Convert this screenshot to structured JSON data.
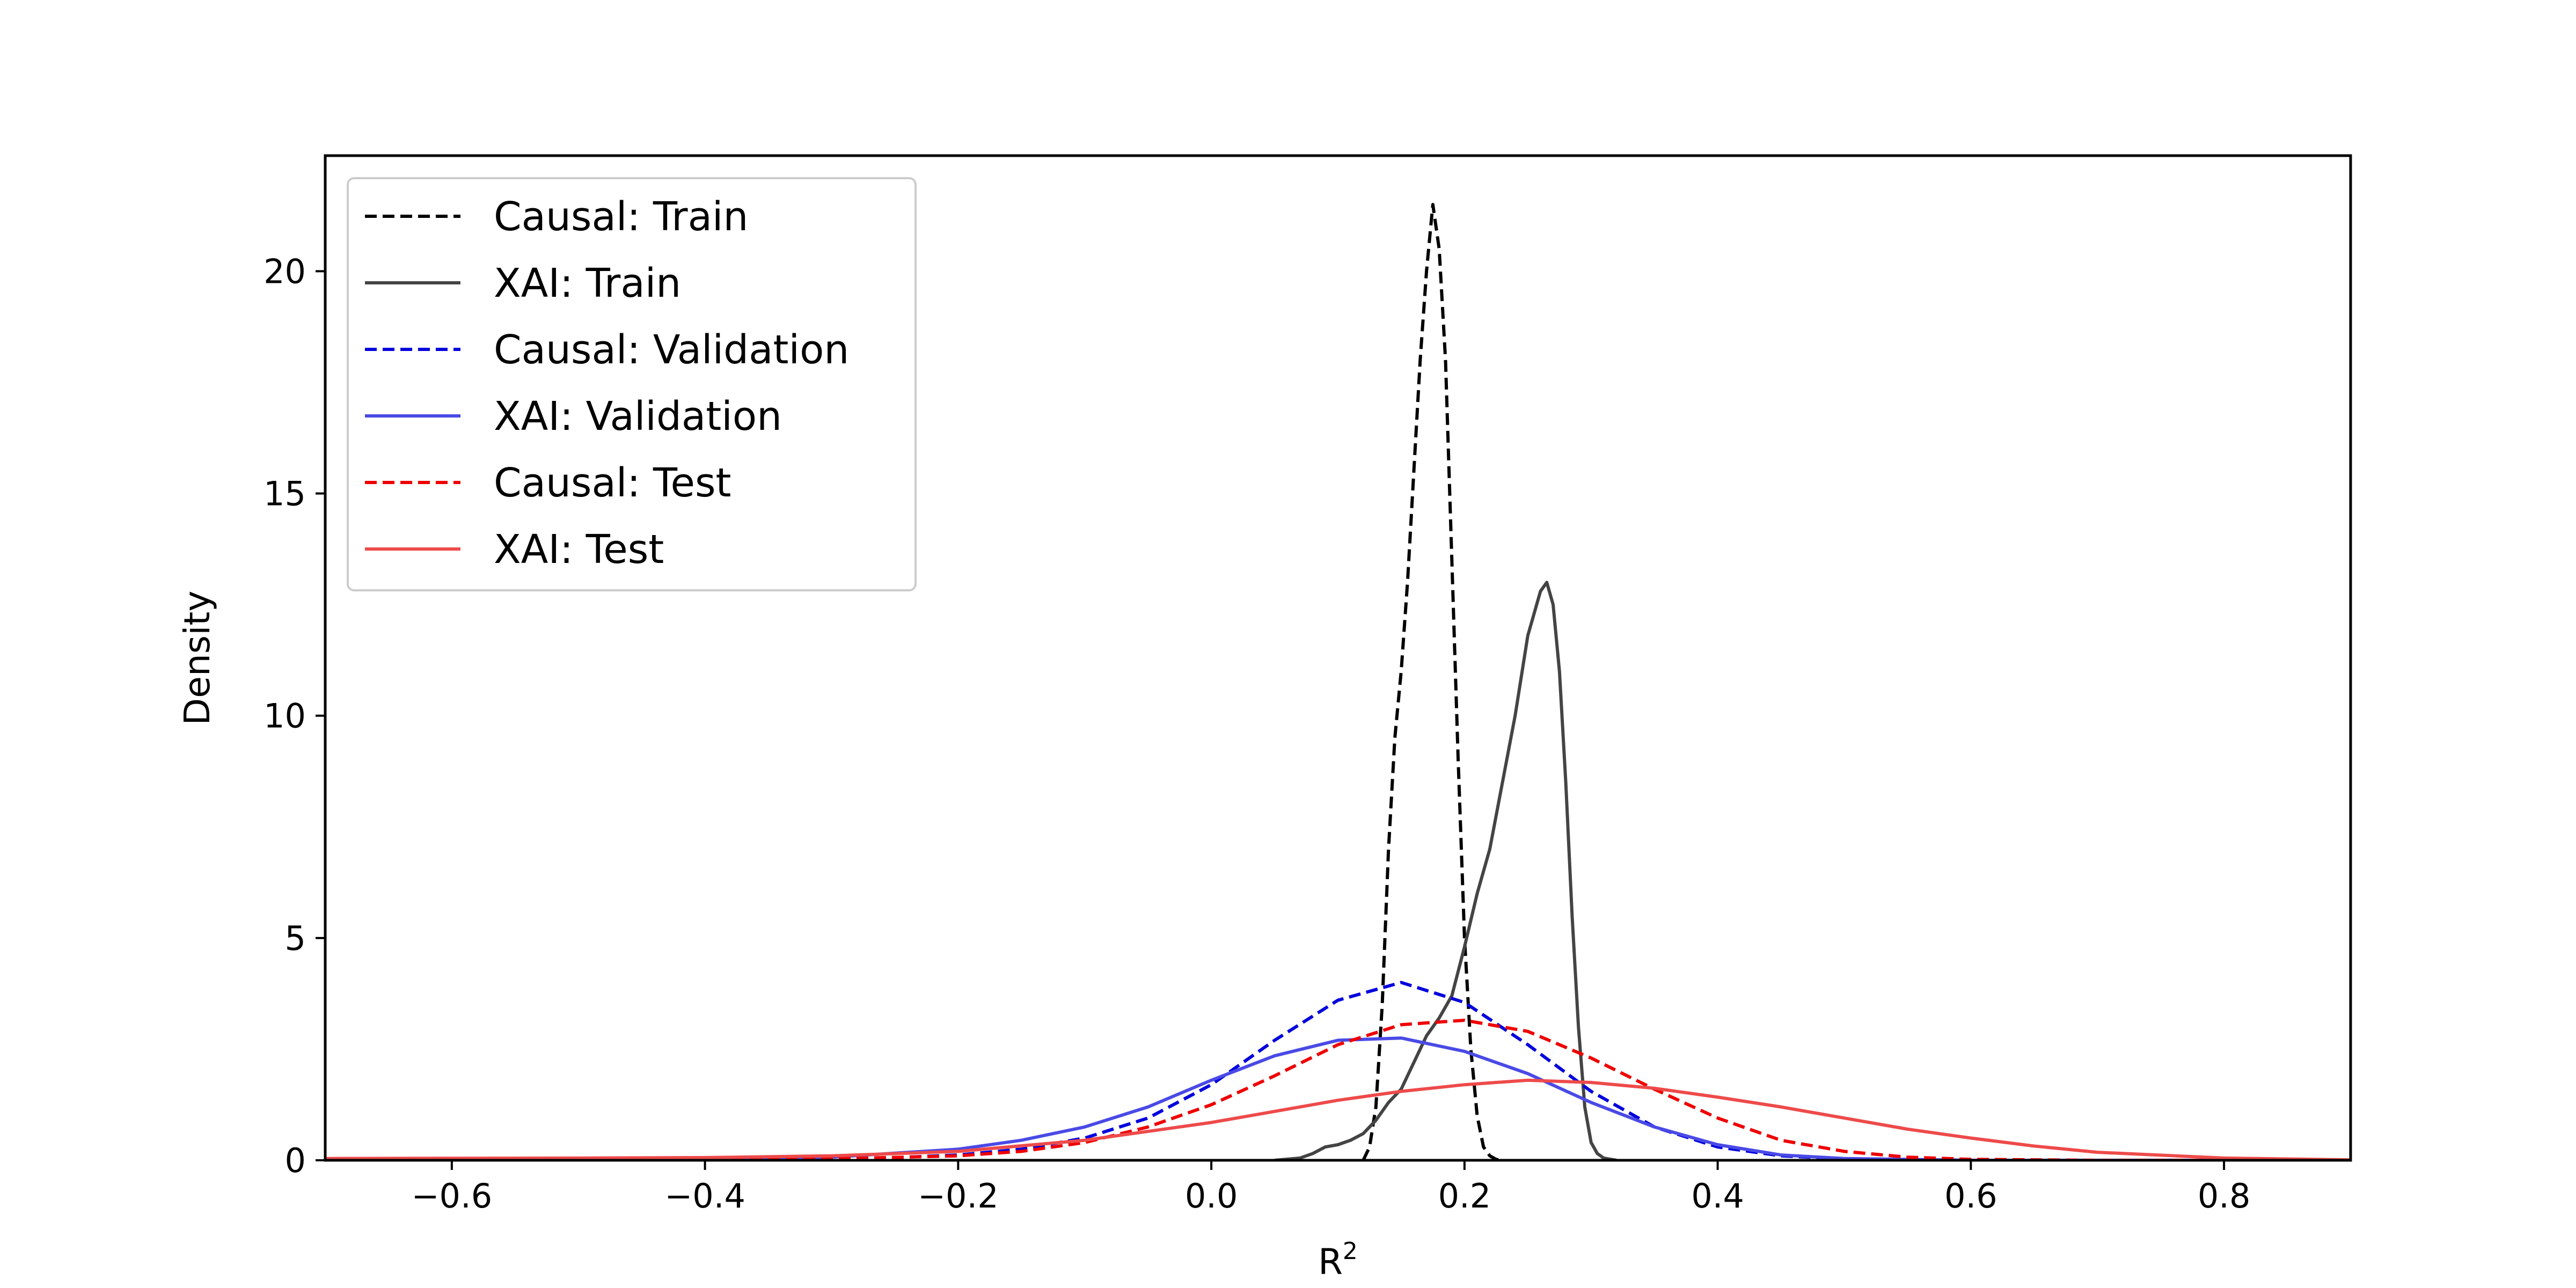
{
  "chart_data": {
    "type": "line",
    "title": "",
    "xlabel": "R",
    "xlabel_superscript": "2",
    "ylabel": "Density",
    "xlim": [
      -0.7,
      0.9
    ],
    "ylim": [
      0,
      22.6
    ],
    "xticks": [
      -0.6,
      -0.4,
      -0.2,
      0.0,
      0.2,
      0.4,
      0.6,
      0.8
    ],
    "xtick_labels": [
      "−0.6",
      "−0.4",
      "−0.2",
      "0.0",
      "0.2",
      "0.4",
      "0.6",
      "0.8"
    ],
    "yticks": [
      0,
      5,
      10,
      15,
      20
    ],
    "ytick_labels": [
      "0",
      "5",
      "10",
      "15",
      "20"
    ],
    "grid": false,
    "legend_position": "top-left",
    "series": [
      {
        "name": "Causal: Train",
        "color": "#000000",
        "dash": "dashed",
        "x": [
          0.12,
          0.125,
          0.13,
          0.135,
          0.14,
          0.145,
          0.15,
          0.155,
          0.16,
          0.165,
          0.17,
          0.175,
          0.18,
          0.185,
          0.19,
          0.195,
          0.2,
          0.205,
          0.21,
          0.215,
          0.22,
          0.225,
          0.23
        ],
        "y": [
          0,
          0.3,
          1.2,
          3.5,
          7.0,
          9.5,
          11.0,
          13.0,
          15.5,
          18.0,
          20.0,
          21.5,
          20.5,
          18.0,
          13.5,
          9.0,
          5.0,
          2.5,
          1.0,
          0.3,
          0.1,
          0.02,
          0
        ]
      },
      {
        "name": "XAI: Train",
        "color": "#444444",
        "dash": "solid",
        "x": [
          0.05,
          0.07,
          0.08,
          0.09,
          0.1,
          0.11,
          0.12,
          0.13,
          0.14,
          0.15,
          0.16,
          0.17,
          0.18,
          0.19,
          0.2,
          0.21,
          0.22,
          0.23,
          0.24,
          0.25,
          0.26,
          0.265,
          0.27,
          0.275,
          0.28,
          0.285,
          0.29,
          0.295,
          0.3,
          0.305,
          0.31,
          0.32
        ],
        "y": [
          0,
          0.05,
          0.15,
          0.3,
          0.35,
          0.45,
          0.6,
          0.9,
          1.3,
          1.6,
          2.2,
          2.8,
          3.2,
          3.7,
          4.8,
          6.0,
          7.0,
          8.5,
          10.0,
          11.8,
          12.8,
          13.0,
          12.5,
          11.0,
          8.5,
          5.5,
          3.0,
          1.2,
          0.4,
          0.15,
          0.05,
          0
        ]
      },
      {
        "name": "Causal: Validation",
        "color": "#0000dd",
        "dash": "dashed",
        "x": [
          -0.7,
          -0.5,
          -0.35,
          -0.25,
          -0.2,
          -0.15,
          -0.1,
          -0.05,
          0.0,
          0.05,
          0.1,
          0.15,
          0.2,
          0.25,
          0.3,
          0.35,
          0.4,
          0.45,
          0.5,
          0.6,
          0.9
        ],
        "y": [
          0,
          0,
          0.02,
          0.06,
          0.12,
          0.25,
          0.5,
          0.95,
          1.7,
          2.7,
          3.6,
          4.0,
          3.55,
          2.6,
          1.55,
          0.75,
          0.3,
          0.1,
          0.03,
          0,
          0
        ]
      },
      {
        "name": "XAI: Validation",
        "color": "#4a4ae6",
        "dash": "solid",
        "x": [
          -0.7,
          -0.4,
          -0.3,
          -0.2,
          -0.15,
          -0.1,
          -0.05,
          0.0,
          0.05,
          0.1,
          0.15,
          0.2,
          0.25,
          0.3,
          0.35,
          0.4,
          0.45,
          0.5,
          0.6,
          0.9
        ],
        "y": [
          0,
          0.02,
          0.07,
          0.25,
          0.45,
          0.75,
          1.2,
          1.8,
          2.35,
          2.7,
          2.75,
          2.45,
          1.95,
          1.3,
          0.75,
          0.35,
          0.12,
          0.04,
          0,
          0
        ]
      },
      {
        "name": "Causal: Test",
        "color": "#ee0000",
        "dash": "dashed",
        "x": [
          -0.7,
          -0.4,
          -0.3,
          -0.2,
          -0.15,
          -0.1,
          -0.05,
          0.0,
          0.05,
          0.1,
          0.15,
          0.2,
          0.25,
          0.3,
          0.35,
          0.4,
          0.45,
          0.5,
          0.55,
          0.6,
          0.7,
          0.9
        ],
        "y": [
          0,
          0.01,
          0.03,
          0.1,
          0.2,
          0.4,
          0.75,
          1.25,
          1.9,
          2.6,
          3.05,
          3.15,
          2.9,
          2.3,
          1.6,
          0.95,
          0.45,
          0.2,
          0.07,
          0.02,
          0,
          0
        ]
      },
      {
        "name": "XAI: Test",
        "color": "#ee4a4a",
        "dash": "solid",
        "x": [
          -0.7,
          -0.5,
          -0.4,
          -0.3,
          -0.2,
          -0.1,
          0.0,
          0.05,
          0.1,
          0.15,
          0.2,
          0.25,
          0.3,
          0.35,
          0.4,
          0.45,
          0.5,
          0.55,
          0.6,
          0.65,
          0.7,
          0.8,
          0.9
        ],
        "y": [
          0.04,
          0.05,
          0.06,
          0.1,
          0.2,
          0.45,
          0.85,
          1.1,
          1.35,
          1.55,
          1.7,
          1.8,
          1.75,
          1.62,
          1.42,
          1.2,
          0.95,
          0.7,
          0.5,
          0.32,
          0.18,
          0.05,
          0.01
        ]
      }
    ]
  }
}
